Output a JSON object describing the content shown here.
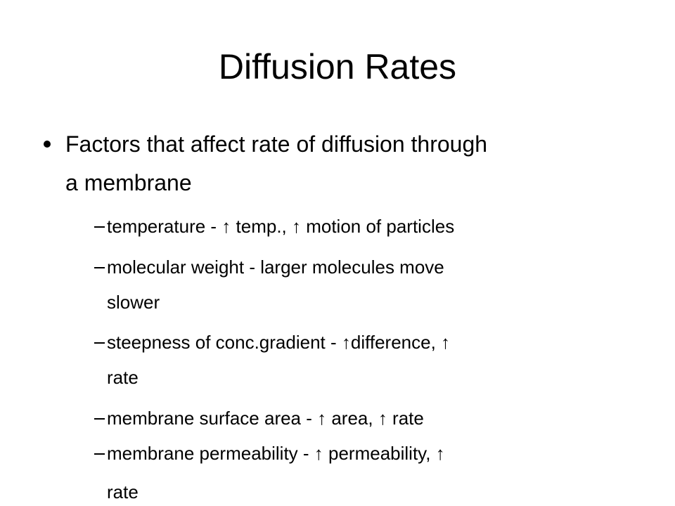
{
  "slide": {
    "title": "Diffusion Rates",
    "bullets": [
      {
        "lines": [
          "Factors that affect rate of diffusion through",
          "a membrane"
        ],
        "subitems": [
          {
            "lines": [
              "temperature - ↑ temp., ↑ motion of particles"
            ]
          },
          {
            "lines": [
              "molecular weight - larger molecules move",
              "slower"
            ]
          },
          {
            "lines": [
              "steepness of conc.gradient - ↑difference, ↑",
              "rate"
            ]
          },
          {
            "lines": [
              "membrane surface area - ↑ area, ↑ rate"
            ]
          },
          {
            "lines": [
              "membrane permeability - ↑ permeability, ↑",
              "rate"
            ]
          }
        ]
      }
    ]
  }
}
